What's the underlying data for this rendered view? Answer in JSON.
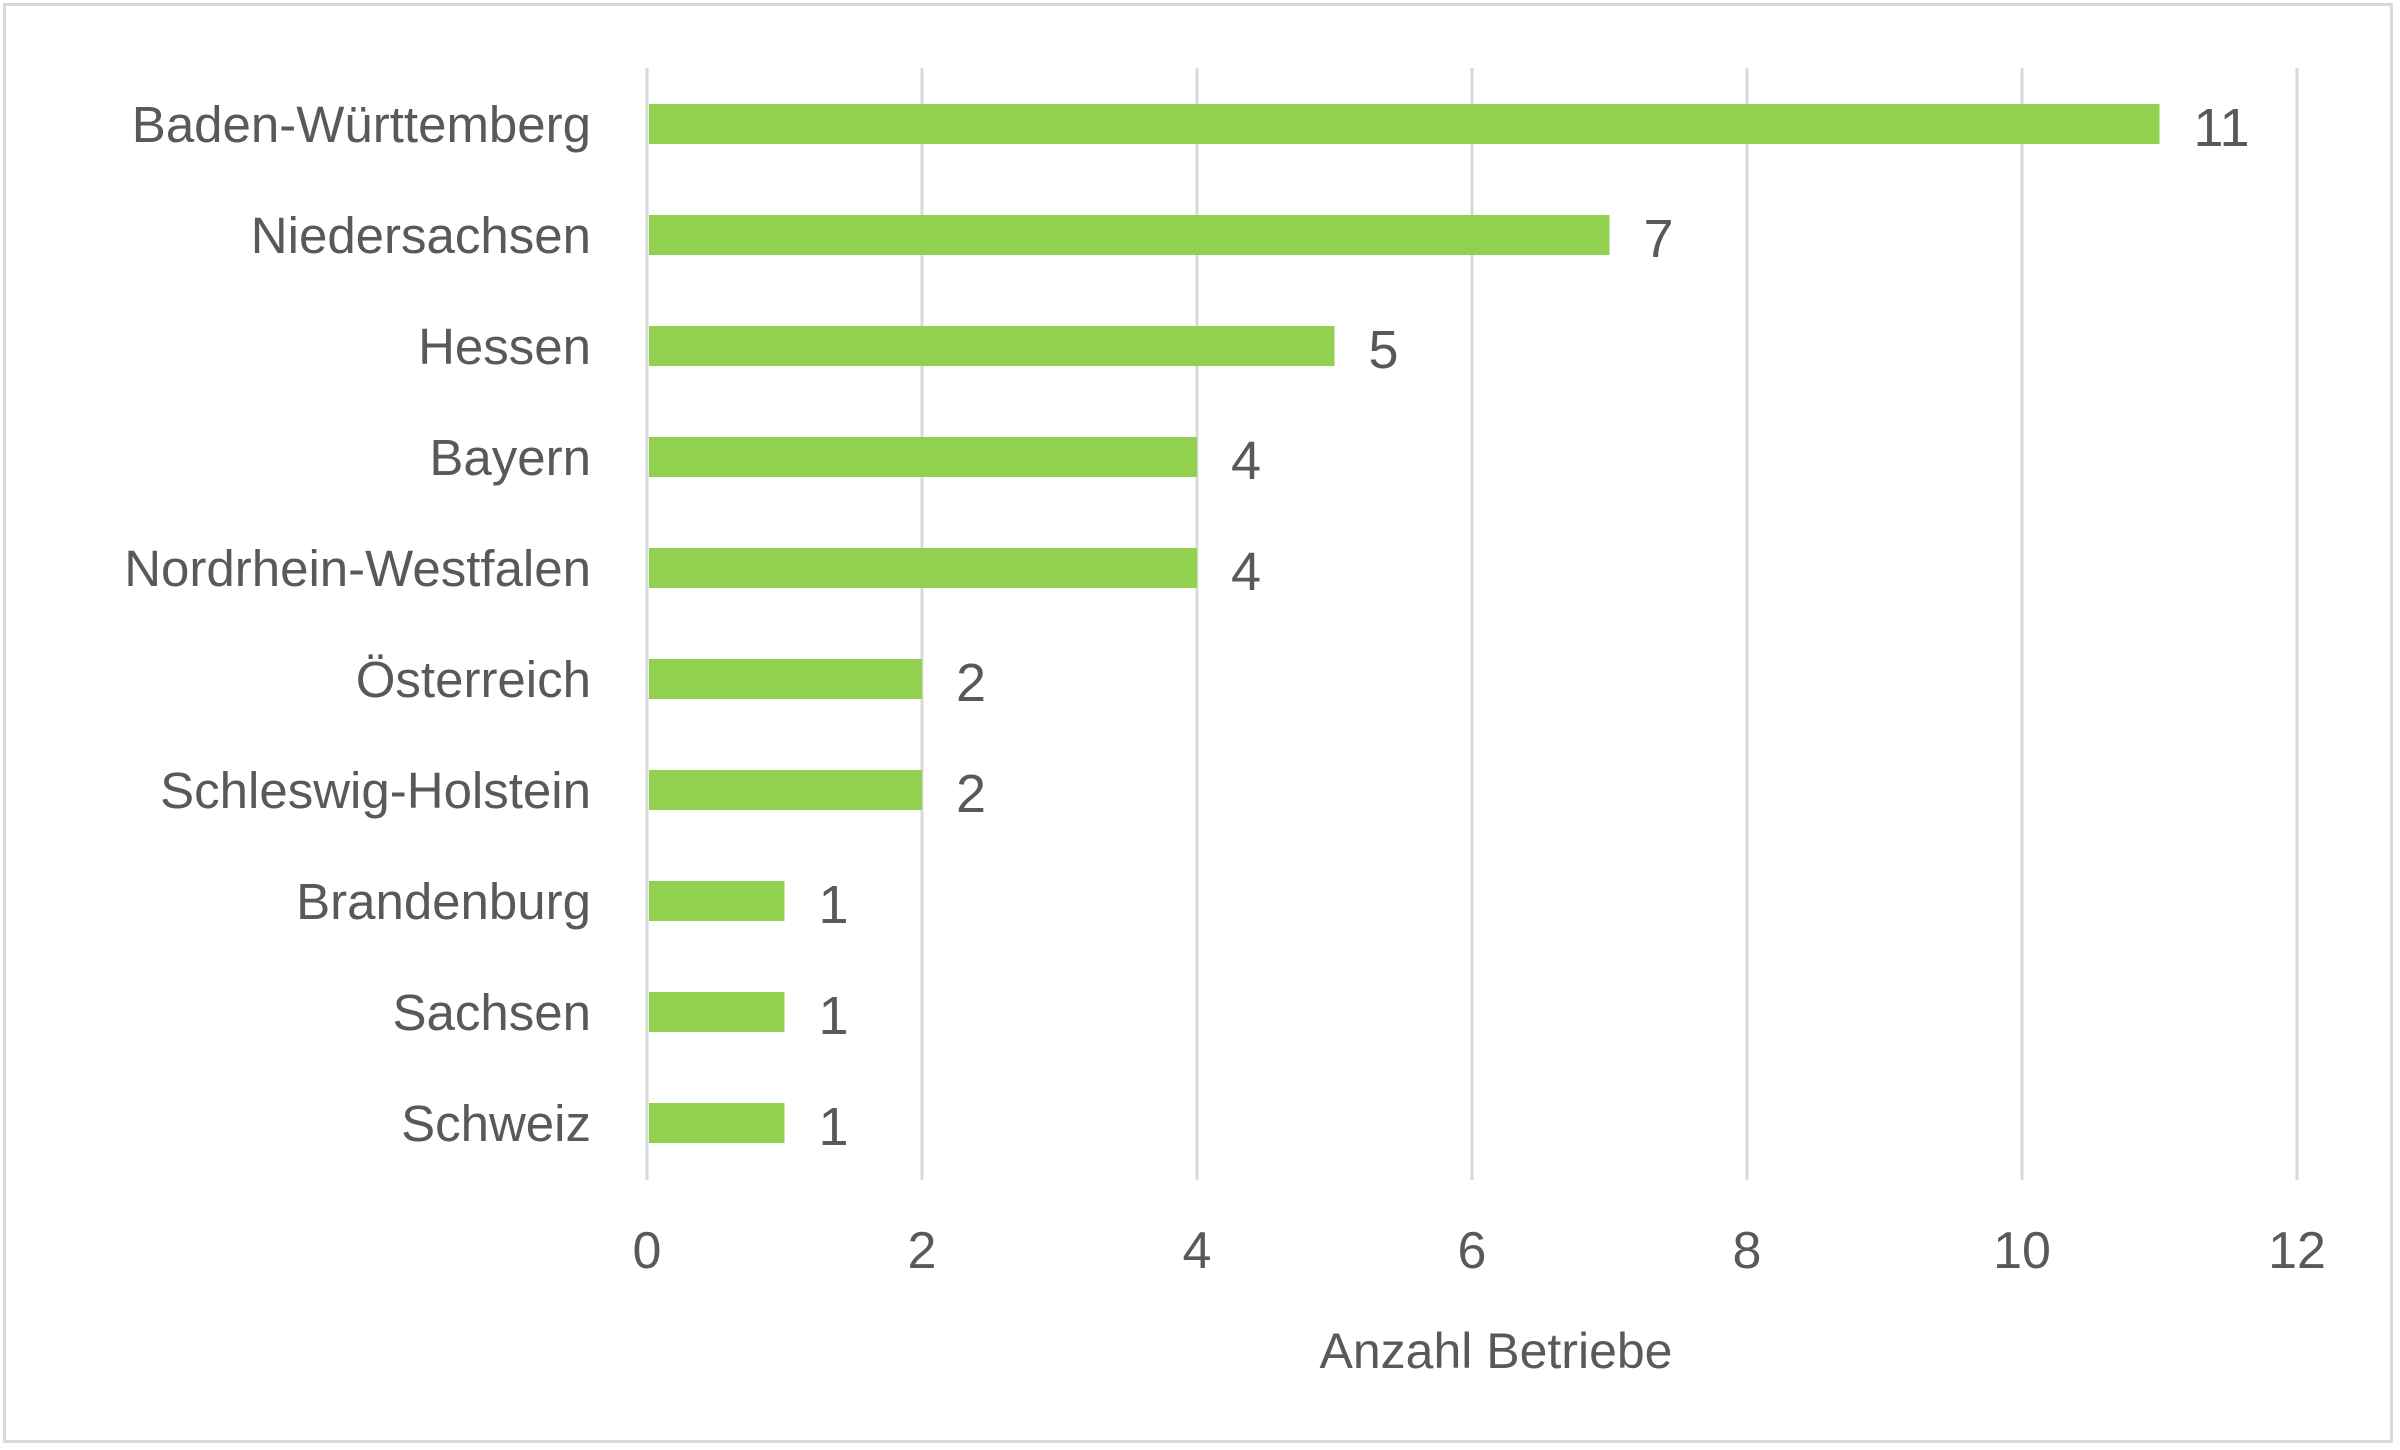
{
  "chart_data": {
    "type": "bar",
    "orientation": "horizontal",
    "categories": [
      "Baden-Württemberg",
      "Niedersachsen",
      "Hessen",
      "Bayern",
      "Nordrhein-Westfalen",
      "Österreich",
      "Schleswig-Holstein",
      "Brandenburg",
      "Sachsen",
      "Schweiz"
    ],
    "values": [
      11,
      7,
      5,
      4,
      4,
      2,
      2,
      1,
      1,
      1
    ],
    "title": "",
    "xlabel": "Anzahl Betriebe",
    "ylabel": "",
    "xlim": [
      0,
      12
    ],
    "xticks": [
      "0",
      "2",
      "4",
      "6",
      "8",
      "10",
      "12"
    ],
    "grid": "vertical",
    "data_labels": true,
    "colors": {
      "bar": "#92d050",
      "grid": "#d9d9d9",
      "text": "#595959",
      "border": "#d9d9d9"
    }
  }
}
